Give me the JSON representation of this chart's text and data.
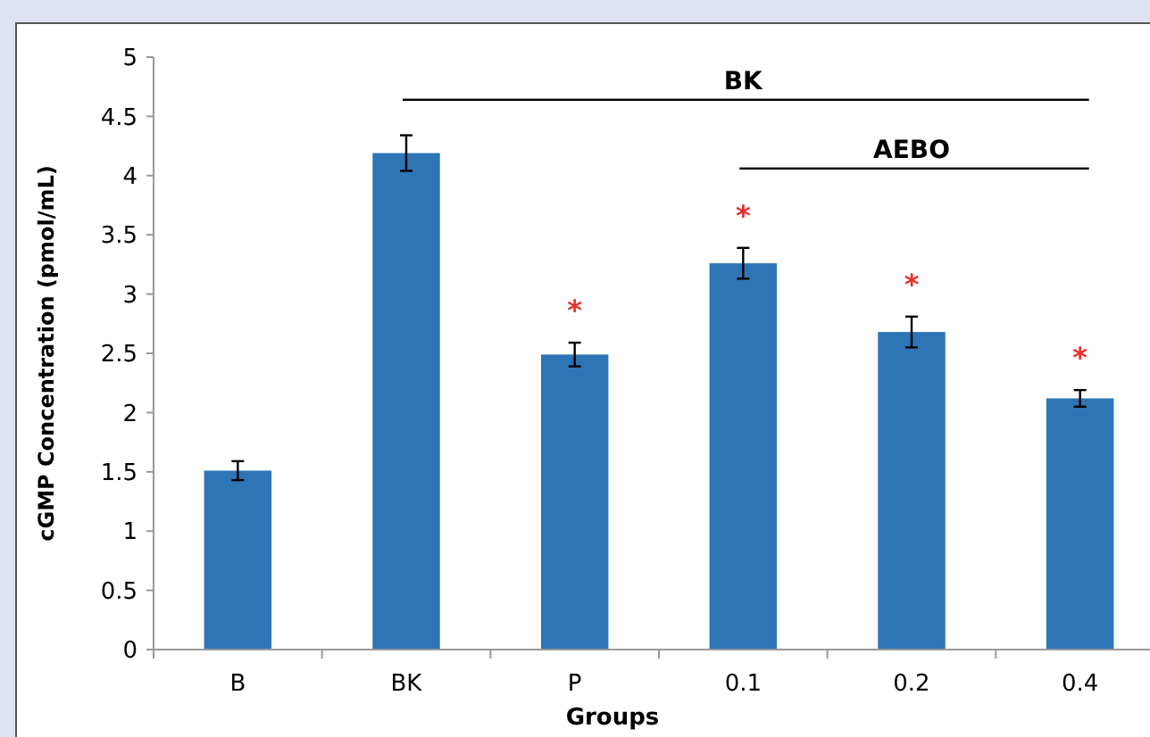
{
  "chart_data": {
    "type": "bar",
    "xlabel": "Groups",
    "ylabel": "cGMP Concentration (pmol/mL)",
    "categories": [
      "B",
      "BK",
      "P",
      "0.1",
      "0.2",
      "0.4"
    ],
    "values": [
      1.51,
      4.19,
      2.49,
      3.26,
      2.68,
      2.12
    ],
    "errors": [
      0.08,
      0.15,
      0.1,
      0.13,
      0.13,
      0.07
    ],
    "color": "#2e75b6",
    "ylim": [
      0,
      5
    ],
    "yticks": [
      0,
      0.5,
      1,
      1.5,
      2,
      2.5,
      3,
      3.5,
      4,
      4.5,
      5
    ],
    "grid": false,
    "annotations": [
      "BK",
      "AEBO",
      "*",
      "*",
      "*",
      "*"
    ]
  }
}
